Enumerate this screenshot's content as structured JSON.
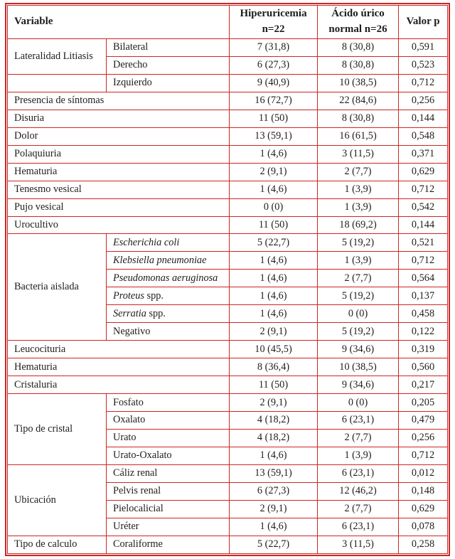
{
  "table": {
    "border_color": "#cc2623",
    "text_color": "#1d1d1b",
    "header": {
      "variable": "Variable",
      "hiper_line1": "Hiperuricemia",
      "hiper_line2": "n=22",
      "acido_line1": "Ácido úrico",
      "acido_line2": "normal n=26",
      "p": "Valor p"
    },
    "rows": [
      {
        "group": {
          "label": "Lateralidad Litiasis",
          "rowspan": 2
        },
        "label": "Bilateral",
        "values": [
          "7 (31,8)",
          "8 (30,8)",
          "0,591"
        ]
      },
      {
        "label": "Derecho",
        "values": [
          "6 (27,3)",
          "8 (30,8)",
          "0,523"
        ]
      },
      {
        "group": {
          "label": "",
          "rowspan": 1
        },
        "label": "Izquierdo",
        "values": [
          "9 (40,9)",
          "10 (38,5)",
          "0,712"
        ]
      },
      {
        "full": true,
        "label": "Presencia de síntomas",
        "values": [
          "16 (72,7)",
          "22 (84,6)",
          "0,256"
        ]
      },
      {
        "full": true,
        "label": "Disuria",
        "values": [
          "11 (50)",
          "8 (30,8)",
          "0,144"
        ]
      },
      {
        "full": true,
        "label": "Dolor",
        "values": [
          "13 (59,1)",
          "16 (61,5)",
          "0,548"
        ]
      },
      {
        "full": true,
        "label": "Polaquiuria",
        "values": [
          "1 (4,6)",
          "3 (11,5)",
          "0,371"
        ]
      },
      {
        "full": true,
        "label": "Hematuria",
        "values": [
          "2 (9,1)",
          "2 (7,7)",
          "0,629"
        ]
      },
      {
        "full": true,
        "label": "Tenesmo vesical",
        "values": [
          "1 (4,6)",
          "1 (3,9)",
          "0,712"
        ]
      },
      {
        "full": true,
        "label": "Pujo vesical",
        "values": [
          "0 (0)",
          "1 (3,9)",
          "0,542"
        ]
      },
      {
        "full": true,
        "label": "Urocultivo",
        "values": [
          "11 (50)",
          "18 (69,2)",
          "0,144"
        ]
      },
      {
        "group": {
          "label": "Bacteria aislada",
          "rowspan": 6
        },
        "parts": [
          {
            "text": "Escherichia coli",
            "italic": true
          }
        ],
        "values": [
          "5 (22,7)",
          "5 (19,2)",
          "0,521"
        ]
      },
      {
        "parts": [
          {
            "text": "Klebsiella pneumoniae",
            "italic": true
          }
        ],
        "values": [
          "1 (4,6)",
          "1 (3,9)",
          "0,712"
        ]
      },
      {
        "parts": [
          {
            "text": "Pseudomonas aeruginosa",
            "italic": true
          }
        ],
        "values": [
          "1 (4,6)",
          "2 (7,7)",
          "0,564"
        ]
      },
      {
        "parts": [
          {
            "text": "Proteus",
            "italic": true
          },
          {
            "text": " spp.",
            "italic": false
          }
        ],
        "values": [
          "1 (4,6)",
          "5 (19,2)",
          "0,137"
        ]
      },
      {
        "parts": [
          {
            "text": "Serratia",
            "italic": true
          },
          {
            "text": " spp.",
            "italic": false
          }
        ],
        "values": [
          "1 (4,6)",
          "0 (0)",
          "0,458"
        ]
      },
      {
        "label": "Negativo",
        "values": [
          "2 (9,1)",
          "5 (19,2)",
          "0,122"
        ]
      },
      {
        "full": true,
        "label": "Leucocituria",
        "values": [
          "10 (45,5)",
          "9 (34,6)",
          "0,319"
        ]
      },
      {
        "full": true,
        "label": "Hematuria",
        "values": [
          "8 (36,4)",
          "10 (38,5)",
          "0,560"
        ]
      },
      {
        "full": true,
        "label": "Cristaluria",
        "values": [
          "11 (50)",
          "9 (34,6)",
          "0,217"
        ]
      },
      {
        "group": {
          "label": "Tipo de cristal",
          "rowspan": 4
        },
        "label": "Fosfato",
        "values": [
          "2 (9,1)",
          "0 (0)",
          "0,205"
        ]
      },
      {
        "label": "Oxalato",
        "values": [
          "4 (18,2)",
          "6 (23,1)",
          "0,479"
        ]
      },
      {
        "label": "Urato",
        "values": [
          "4 (18,2)",
          "2 (7,7)",
          "0,256"
        ]
      },
      {
        "label": "Urato-Oxalato",
        "values": [
          "1 (4,6)",
          "1 (3,9)",
          "0,712"
        ]
      },
      {
        "group": {
          "label": "Ubicación",
          "rowspan": 4
        },
        "label": "Cáliz renal",
        "values": [
          "13 (59,1)",
          "6 (23,1)",
          "0,012"
        ]
      },
      {
        "label": "Pelvis renal",
        "values": [
          "6 (27,3)",
          "12 (46,2)",
          "0,148"
        ]
      },
      {
        "label": "Pielocalicial",
        "values": [
          "2 (9,1)",
          "2 (7,7)",
          "0,629"
        ]
      },
      {
        "label": "Uréter",
        "values": [
          "1 (4,6)",
          "6 (23,1)",
          "0,078"
        ]
      },
      {
        "group": {
          "label": "Tipo de calculo",
          "rowspan": 1
        },
        "label": "Coraliforme",
        "values": [
          "5 (22,7)",
          "3 (11,5)",
          "0,258"
        ]
      }
    ]
  }
}
